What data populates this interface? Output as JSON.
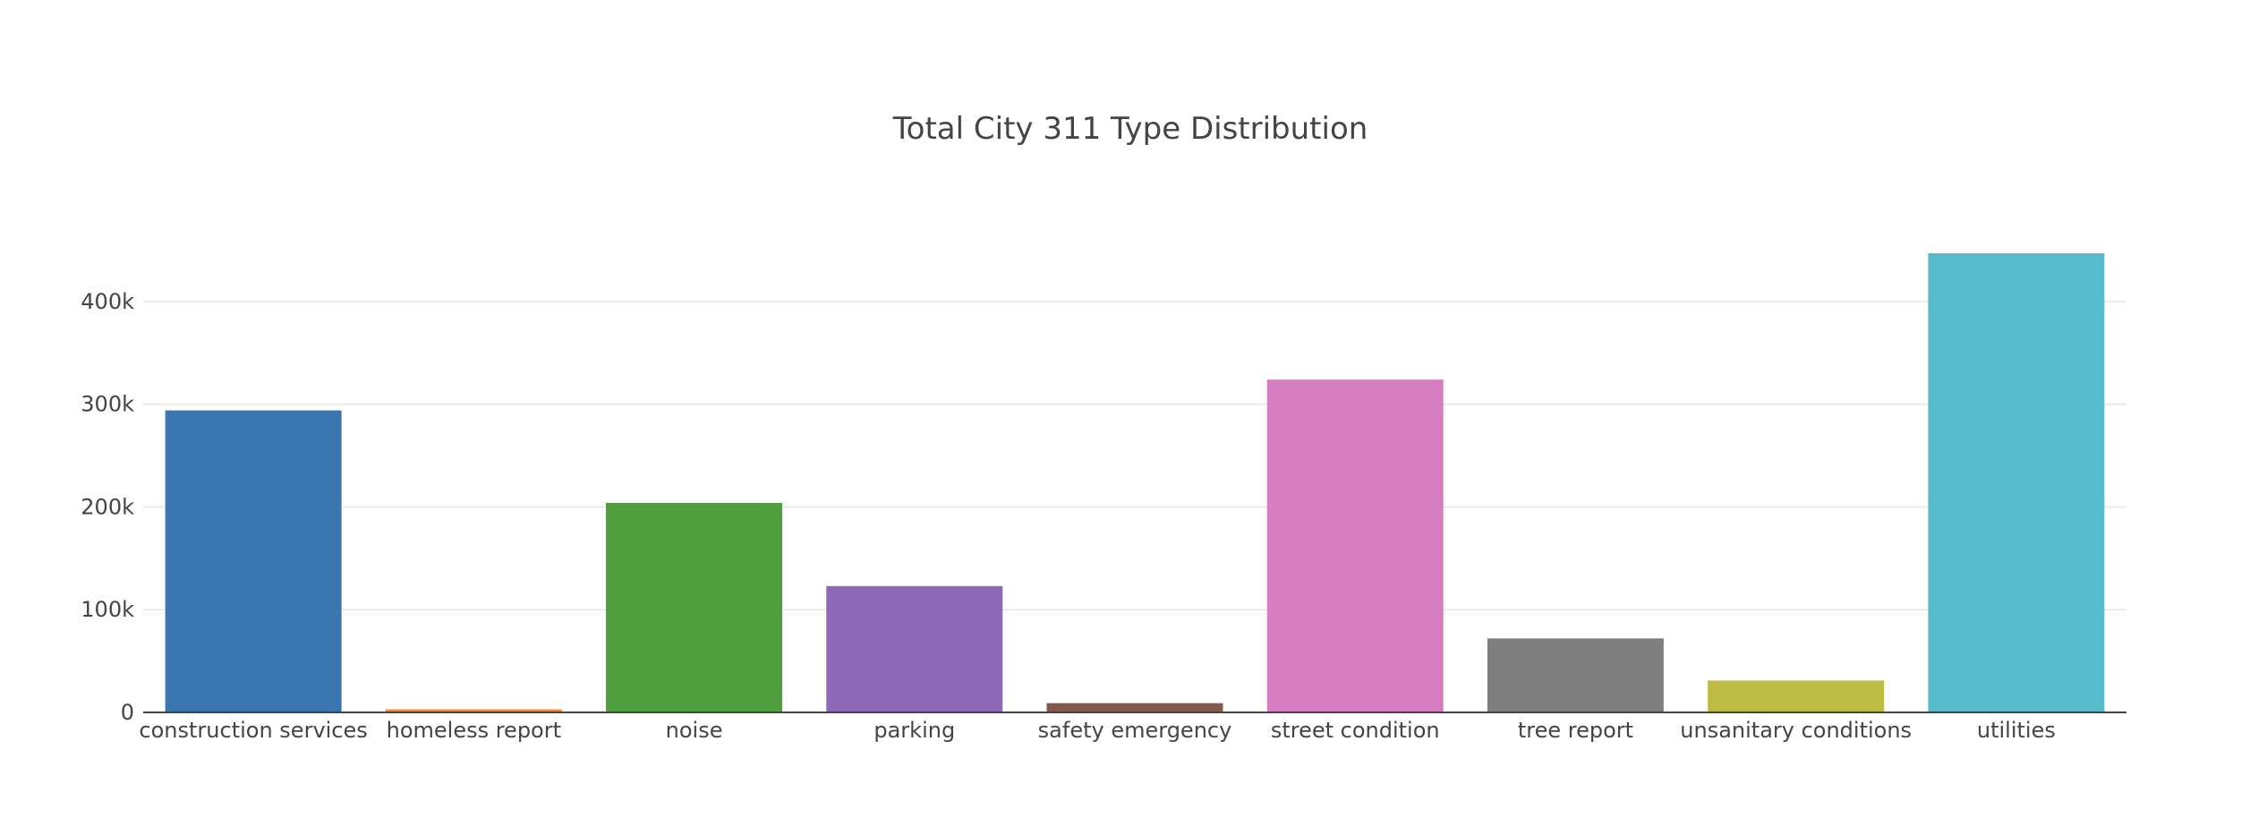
{
  "chart_data": {
    "type": "bar",
    "title": "Total City 311 Type Distribution",
    "xlabel": "",
    "ylabel": "",
    "categories": [
      "construction services",
      "homeless report",
      "noise",
      "parking",
      "safety emergency",
      "street condition",
      "tree report",
      "unsanitary conditions",
      "utilities"
    ],
    "values": [
      294000,
      3000,
      204000,
      123000,
      9000,
      324000,
      72000,
      31000,
      447000
    ],
    "colors": [
      "#3a76af",
      "#ef8536",
      "#519e3e",
      "#8d69b8",
      "#84584e",
      "#d57dbf",
      "#7f7f7f",
      "#bcbc45",
      "#58bbcc"
    ],
    "ylim": [
      0,
      447000
    ],
    "yticks": [
      0,
      100000,
      200000,
      300000,
      400000
    ],
    "ytick_labels": [
      "0",
      "100k",
      "200k",
      "300k",
      "400k"
    ],
    "grid": true,
    "legend": "none"
  }
}
